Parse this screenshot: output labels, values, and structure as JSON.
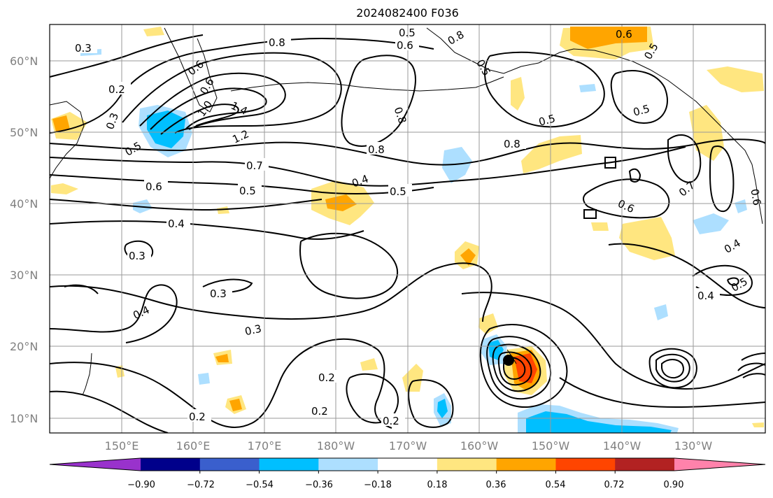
{
  "title": "2024082400 F036",
  "map": {
    "lat_ticks": [
      "60°N",
      "50°N",
      "40°N",
      "30°N",
      "20°N",
      "10°N"
    ],
    "lon_ticks": [
      "150°E",
      "160°E",
      "170°E",
      "180°W",
      "170°W",
      "160°W",
      "150°W",
      "140°W",
      "130°W"
    ],
    "contour_labels": [
      "0.3",
      "0.2",
      "0.3",
      "0.5",
      "0.6",
      "0.8",
      "0.6",
      "1.0",
      "1.4",
      "1.2",
      "0.7",
      "0.6",
      "0.5",
      "0.4",
      "0.4",
      "0.5",
      "0.3",
      "0.3",
      "0.4",
      "0.3",
      "0.2",
      "0.2",
      "0.2",
      "0.2",
      "0.5",
      "0.6",
      "0.8",
      "0.5",
      "0.8",
      "0.8",
      "0.6",
      "0.5",
      "0.8",
      "0.5",
      "0.5",
      "0.6",
      "0.7",
      "0.4",
      "0.4",
      "0.5",
      "0.6"
    ],
    "fill_colors": {
      "pos_018": "#ffe680",
      "pos_036": "#ffa500",
      "pos_054": "#ff4500",
      "neg_036": "#00bfff",
      "neg_018": "#addfff"
    }
  },
  "colorbar": {
    "colors": [
      "#9932cc",
      "#00008b",
      "#3a5fcd",
      "#00bfff",
      "#addfff",
      "#ffffff",
      "#ffe680",
      "#ffa500",
      "#ff4500",
      "#b22222",
      "#ff82ab"
    ],
    "tick_labels": [
      "−0.90",
      "−0.72",
      "−0.54",
      "−0.36",
      "−0.18",
      "0.18",
      "0.36",
      "0.54",
      "0.72",
      "0.90"
    ]
  }
}
